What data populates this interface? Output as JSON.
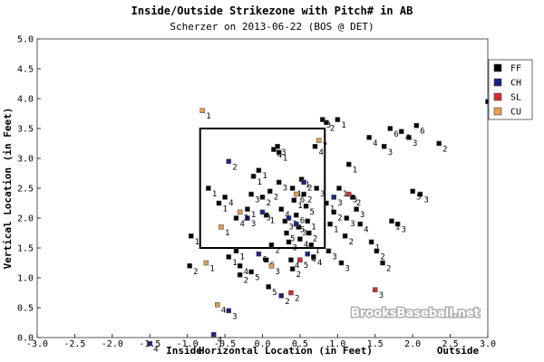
{
  "chart_data": {
    "type": "scatter",
    "title": "Inside/Outside Strikezone with Pitch# in AB",
    "subtitle": "Scherzer on 2013-06-22 (BOS @ DET)",
    "xlabel": "Horizontal Location (in Feet)",
    "ylabel": "Vertical Location (in Feet)",
    "x_side_labels": {
      "left": "Inside",
      "right": "Outside"
    },
    "xlim": [
      -3.0,
      3.0
    ],
    "ylim": [
      0.0,
      5.0
    ],
    "xticks": [
      "-3.0",
      "-2.5",
      "-2.0",
      "-1.5",
      "-1.0",
      "-0.5",
      "0.0",
      "0.5",
      "1.0",
      "1.5",
      "2.0",
      "2.5",
      "3.0"
    ],
    "yticks": [
      "0.0",
      "0.5",
      "1.0",
      "1.5",
      "2.0",
      "2.5",
      "3.0",
      "3.5",
      "4.0",
      "4.5",
      "5.0"
    ],
    "strike_zone": {
      "x": [
        -0.83,
        0.83
      ],
      "y": [
        1.5,
        3.5
      ]
    },
    "grid": false,
    "legend_position": "right",
    "watermark": "BrooksBaseball.net",
    "colors": {
      "FF": "#000000",
      "CH": "#1a237e",
      "SL": "#d32f2f",
      "CU": "#e0a050"
    },
    "series": [
      {
        "name": "FF",
        "color": "#000000",
        "points": [
          {
            "x": -0.95,
            "y": 1.7,
            "label": "1"
          },
          {
            "x": -0.97,
            "y": 1.2,
            "label": "2"
          },
          {
            "x": -0.72,
            "y": 2.5,
            "label": "1"
          },
          {
            "x": -0.58,
            "y": 2.25,
            "label": "1"
          },
          {
            "x": -0.5,
            "y": 2.35,
            "label": "4"
          },
          {
            "x": -0.45,
            "y": 1.35,
            "label": "1"
          },
          {
            "x": -0.35,
            "y": 1.45,
            "label": "1"
          },
          {
            "x": -0.3,
            "y": 1.2,
            "label": "4"
          },
          {
            "x": -0.3,
            "y": 1.05,
            "label": "2"
          },
          {
            "x": -0.35,
            "y": 2.0,
            "label": "4"
          },
          {
            "x": -0.2,
            "y": 2.15,
            "label": "1"
          },
          {
            "x": -0.15,
            "y": 2.4,
            "label": "3"
          },
          {
            "x": -0.15,
            "y": 1.1,
            "label": "5"
          },
          {
            "x": -0.12,
            "y": 2.7,
            "label": "1"
          },
          {
            "x": -0.05,
            "y": 2.8,
            "label": "1"
          },
          {
            "x": 0.0,
            "y": 2.35,
            "label": "2"
          },
          {
            "x": 0.05,
            "y": 2.05,
            "label": "1"
          },
          {
            "x": 0.05,
            "y": 1.3,
            "label": "5"
          },
          {
            "x": 0.08,
            "y": 0.85,
            "label": "5"
          },
          {
            "x": 0.1,
            "y": 2.45,
            "label": "2"
          },
          {
            "x": 0.12,
            "y": 1.55,
            "label": "2"
          },
          {
            "x": 0.15,
            "y": 3.15,
            "label": "4"
          },
          {
            "x": 0.2,
            "y": 3.2,
            "label": "3"
          },
          {
            "x": 0.22,
            "y": 3.1,
            "label": "1"
          },
          {
            "x": 0.22,
            "y": 2.6,
            "label": "3"
          },
          {
            "x": 0.25,
            "y": 2.15,
            "label": "4"
          },
          {
            "x": 0.3,
            "y": 1.95,
            "label": "3"
          },
          {
            "x": 0.32,
            "y": 1.75,
            "label": "5"
          },
          {
            "x": 0.35,
            "y": 1.6,
            "label": "3"
          },
          {
            "x": 0.38,
            "y": 1.3,
            "label": "4"
          },
          {
            "x": 0.4,
            "y": 1.15,
            "label": "2"
          },
          {
            "x": 0.4,
            "y": 2.5,
            "label": "4"
          },
          {
            "x": 0.42,
            "y": 2.3,
            "label": "1"
          },
          {
            "x": 0.45,
            "y": 2.05,
            "label": "6"
          },
          {
            "x": 0.48,
            "y": 1.85,
            "label": "3"
          },
          {
            "x": 0.5,
            "y": 1.65,
            "label": "4"
          },
          {
            "x": 0.52,
            "y": 2.65,
            "label": "1"
          },
          {
            "x": 0.55,
            "y": 2.4,
            "label": "2"
          },
          {
            "x": 0.58,
            "y": 2.2,
            "label": "5"
          },
          {
            "x": 0.6,
            "y": 1.95,
            "label": "1"
          },
          {
            "x": 0.62,
            "y": 1.75,
            "label": "2"
          },
          {
            "x": 0.65,
            "y": 1.55,
            "label": "1"
          },
          {
            "x": 0.68,
            "y": 1.35,
            "label": "4"
          },
          {
            "x": 0.7,
            "y": 3.2,
            "label": "4"
          },
          {
            "x": 0.72,
            "y": 2.5,
            "label": "3"
          },
          {
            "x": 0.8,
            "y": 3.65,
            "label": "3"
          },
          {
            "x": 0.85,
            "y": 3.6,
            "label": "2"
          },
          {
            "x": 0.85,
            "y": 2.25,
            "label": "1"
          },
          {
            "x": 0.88,
            "y": 1.45,
            "label": "3"
          },
          {
            "x": 0.9,
            "y": 1.9,
            "label": "1"
          },
          {
            "x": 0.95,
            "y": 2.1,
            "label": "2"
          },
          {
            "x": 1.0,
            "y": 3.65,
            "label": "1"
          },
          {
            "x": 1.02,
            "y": 2.5,
            "label": "1"
          },
          {
            "x": 1.05,
            "y": 1.25,
            "label": "3"
          },
          {
            "x": 1.1,
            "y": 1.7,
            "label": "2"
          },
          {
            "x": 1.12,
            "y": 2.0,
            "label": "3"
          },
          {
            "x": 1.15,
            "y": 2.9,
            "label": "1"
          },
          {
            "x": 1.2,
            "y": 2.35,
            "label": "2"
          },
          {
            "x": 1.25,
            "y": 2.15,
            "label": "3"
          },
          {
            "x": 1.3,
            "y": 1.9,
            "label": "4"
          },
          {
            "x": 1.42,
            "y": 3.35,
            "label": "4"
          },
          {
            "x": 1.45,
            "y": 1.6,
            "label": "1"
          },
          {
            "x": 1.52,
            "y": 1.45,
            "label": "2"
          },
          {
            "x": 1.6,
            "y": 1.25,
            "label": "2"
          },
          {
            "x": 1.62,
            "y": 3.2,
            "label": "3"
          },
          {
            "x": 1.7,
            "y": 3.5,
            "label": "6"
          },
          {
            "x": 1.72,
            "y": 1.95,
            "label": "1"
          },
          {
            "x": 1.8,
            "y": 1.9,
            "label": "3"
          },
          {
            "x": 1.85,
            "y": 3.45,
            "label": "4"
          },
          {
            "x": 1.95,
            "y": 3.35,
            "label": "3"
          },
          {
            "x": 2.0,
            "y": 2.45,
            "label": "5"
          },
          {
            "x": 2.05,
            "y": 3.55,
            "label": "6"
          },
          {
            "x": 2.1,
            "y": 2.4,
            "label": "3"
          },
          {
            "x": 2.35,
            "y": 3.25,
            "label": "2"
          },
          {
            "x": 3.0,
            "y": 3.95,
            "label": "3"
          }
        ]
      },
      {
        "name": "CH",
        "color": "#1a237e",
        "points": [
          {
            "x": -0.45,
            "y": 2.95,
            "label": "2"
          },
          {
            "x": -0.2,
            "y": 2.0,
            "label": "3"
          },
          {
            "x": -0.05,
            "y": 1.4,
            "label": "6"
          },
          {
            "x": 0.0,
            "y": 2.1,
            "label": "3"
          },
          {
            "x": 0.35,
            "y": 2.0,
            "label": "3"
          },
          {
            "x": 0.45,
            "y": 1.9,
            "label": "5"
          },
          {
            "x": 0.55,
            "y": 2.6,
            "label": "2"
          },
          {
            "x": 0.6,
            "y": 1.4,
            "label": "4"
          },
          {
            "x": 0.95,
            "y": 2.35,
            "label": "3"
          },
          {
            "x": 0.25,
            "y": 0.7,
            "label": "2"
          },
          {
            "x": -0.45,
            "y": 0.45,
            "label": "3"
          },
          {
            "x": -0.65,
            "y": 0.05,
            "label": "4"
          },
          {
            "x": -1.5,
            "y": -0.1,
            "label": "4"
          }
        ]
      },
      {
        "name": "SL",
        "color": "#d32f2f",
        "points": [
          {
            "x": 1.5,
            "y": 0.8,
            "label": "3"
          },
          {
            "x": 0.38,
            "y": 0.75,
            "label": "2"
          },
          {
            "x": 0.5,
            "y": 1.3,
            "label": "5"
          },
          {
            "x": 1.15,
            "y": 2.4,
            "label": "3"
          }
        ]
      },
      {
        "name": "CU",
        "color": "#e0a050",
        "points": [
          {
            "x": -0.8,
            "y": 3.8,
            "label": "1"
          },
          {
            "x": -0.75,
            "y": 1.25,
            "label": "1"
          },
          {
            "x": -0.55,
            "y": 1.85,
            "label": "1"
          },
          {
            "x": -0.6,
            "y": 0.55,
            "label": "4"
          },
          {
            "x": -0.3,
            "y": 2.1,
            "label": "3"
          },
          {
            "x": 0.12,
            "y": 1.2,
            "label": "3"
          },
          {
            "x": 0.45,
            "y": 2.4,
            "label": "6"
          },
          {
            "x": 0.75,
            "y": 3.3,
            "label": "7"
          }
        ]
      }
    ]
  }
}
